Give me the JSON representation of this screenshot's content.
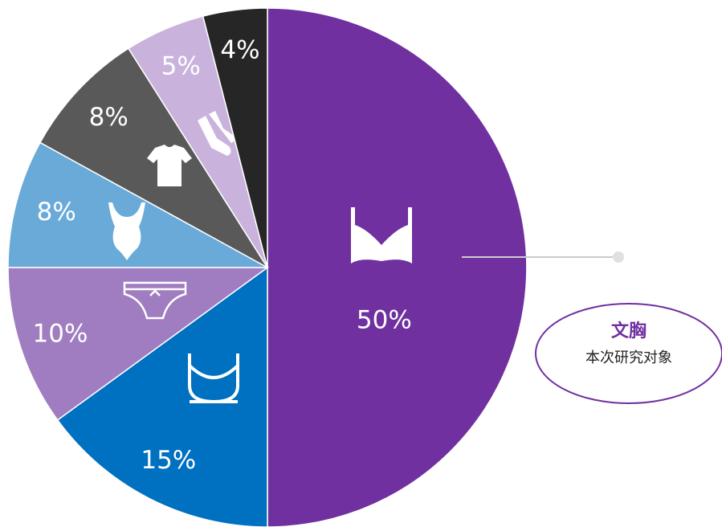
{
  "chart_data": {
    "type": "pie",
    "values": [
      50,
      15,
      10,
      8,
      8,
      5,
      4
    ],
    "value_labels": [
      "50%",
      "15%",
      "10%",
      "8%",
      "8%",
      "5%",
      "4%"
    ],
    "colors": [
      "#7030a0",
      "#0070c0",
      "#a07cc0",
      "#6aaad8",
      "#595959",
      "#c9b3dc",
      "#262626"
    ],
    "annotation": {
      "title": "文胸",
      "subtitle": "本次研究对象"
    }
  }
}
